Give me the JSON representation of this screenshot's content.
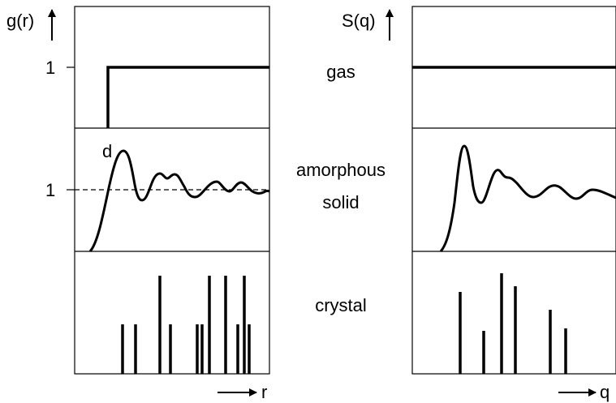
{
  "left_panel": {
    "y_axis_label": "g(r)",
    "x_axis_label": "r",
    "tick_label_gas": "1",
    "tick_label_amorphous": "1",
    "peak_label": "d"
  },
  "right_panel": {
    "y_axis_label": "S(q)",
    "x_axis_label": "q"
  },
  "states": {
    "gas": "gas",
    "amorphous_line1": "amorphous",
    "amorphous_line2": "solid",
    "crystal": "crystal"
  },
  "colors": {
    "line": "#000000",
    "background": "#ffffff"
  }
}
